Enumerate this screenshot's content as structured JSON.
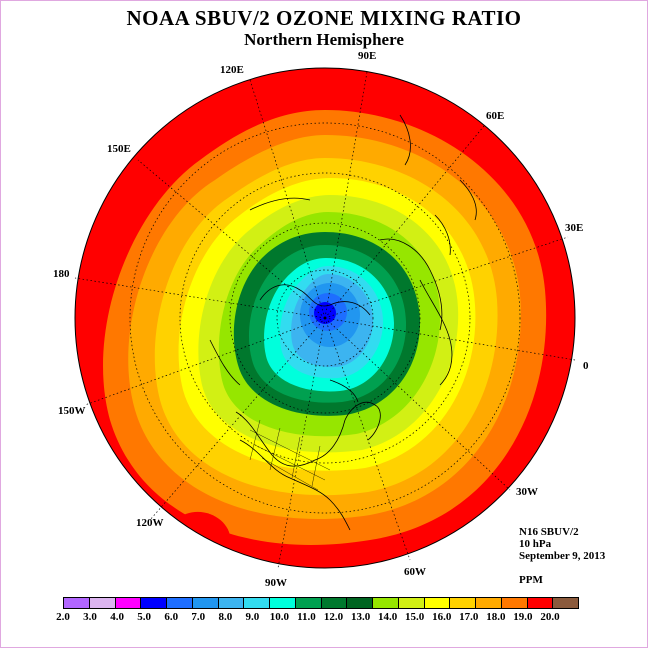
{
  "title": "NOAA SBUV/2 OZONE MIXING RATIO",
  "subtitle": "Northern Hemisphere",
  "longitude_labels": {
    "e90": "90E",
    "e120": "120E",
    "e60": "60E",
    "e150": "150E",
    "e30": "30E",
    "d180": "180",
    "d0": "0",
    "w150": "150W",
    "w30": "30W",
    "w120": "120W",
    "w60": "60W",
    "w90": "90W"
  },
  "info": {
    "instrument": "N16 SBUV/2",
    "pressure": "10 hPa",
    "date": "September 9, 2013",
    "units": "PPM"
  },
  "legend": {
    "ticks": [
      "2.0",
      "3.0",
      "4.0",
      "5.0",
      "6.0",
      "7.0",
      "8.0",
      "9.0",
      "10.0",
      "11.0",
      "12.0",
      "13.0",
      "14.0",
      "15.0",
      "16.0",
      "17.0",
      "18.0",
      "19.0",
      "20.0"
    ],
    "colors": [
      "#b266ff",
      "#dcb4f0",
      "#ff00ff",
      "#0000ff",
      "#1e6eff",
      "#2196f0",
      "#3cb4f0",
      "#32dcf0",
      "#00ffdc",
      "#00a050",
      "#00782d",
      "#006420",
      "#96e600",
      "#d2f014",
      "#ffff00",
      "#ffd200",
      "#ffaa00",
      "#ff7800",
      "#ff0000",
      "#8b5a3c"
    ]
  },
  "map_data": {
    "projection": "north-polar-stereographic",
    "meridian_labels_deg": [
      0,
      30,
      60,
      90,
      120,
      150,
      180,
      -150,
      -120,
      -90,
      -60,
      -30
    ],
    "ozone_ppm_min_near_pole": 5.5,
    "ozone_ppm_max_at_edge": 19.5
  }
}
